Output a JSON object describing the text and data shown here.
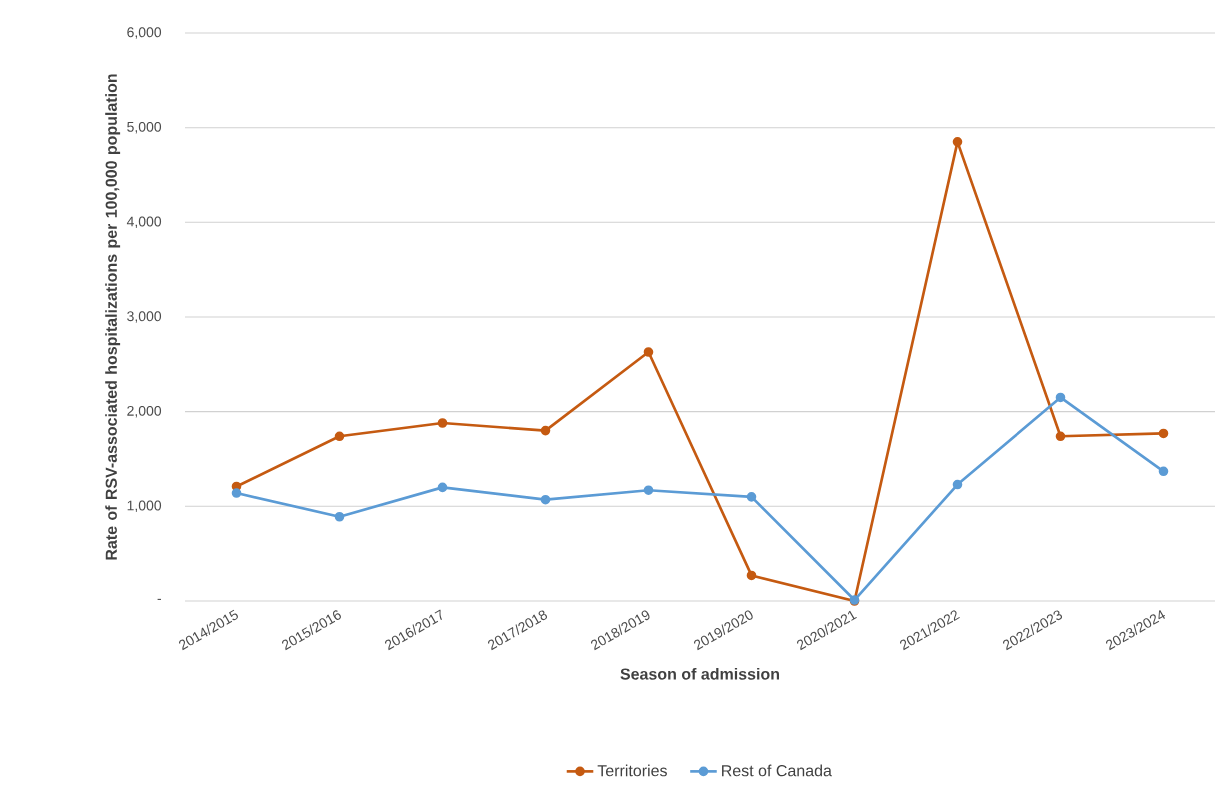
{
  "chart_data": {
    "type": "line",
    "xlabel": "Season of admission",
    "ylabel": "Rate of RSV-associated hospitalizations per 100,000 population",
    "categories": [
      "2014/2015",
      "2015/2016",
      "2016/2017",
      "2017/2018",
      "2018/2019",
      "2019/2020",
      "2020/2021",
      "2021/2022",
      "2022/2023",
      "2023/2024"
    ],
    "series": [
      {
        "name": "Territories",
        "color": "#c55a11",
        "values": [
          1210,
          1740,
          1880,
          1800,
          2630,
          270,
          0,
          4850,
          1740,
          1770
        ]
      },
      {
        "name": "Rest of Canada",
        "color": "#5b9bd5",
        "values": [
          1140,
          890,
          1200,
          1070,
          1170,
          1100,
          10,
          1230,
          2150,
          1370
        ]
      }
    ],
    "ylim": [
      0,
      6000
    ],
    "yticks": [
      {
        "value": 0,
        "label": "-"
      },
      {
        "value": 1000,
        "label": "1,000"
      },
      {
        "value": 2000,
        "label": "2,000"
      },
      {
        "value": 3000,
        "label": "3,000"
      },
      {
        "value": 4000,
        "label": "4,000"
      },
      {
        "value": 5000,
        "label": "5,000"
      },
      {
        "value": 6000,
        "label": "6,000"
      }
    ],
    "grid": "y",
    "legend": "bottom",
    "marker": "circle",
    "line_style": "solid"
  }
}
